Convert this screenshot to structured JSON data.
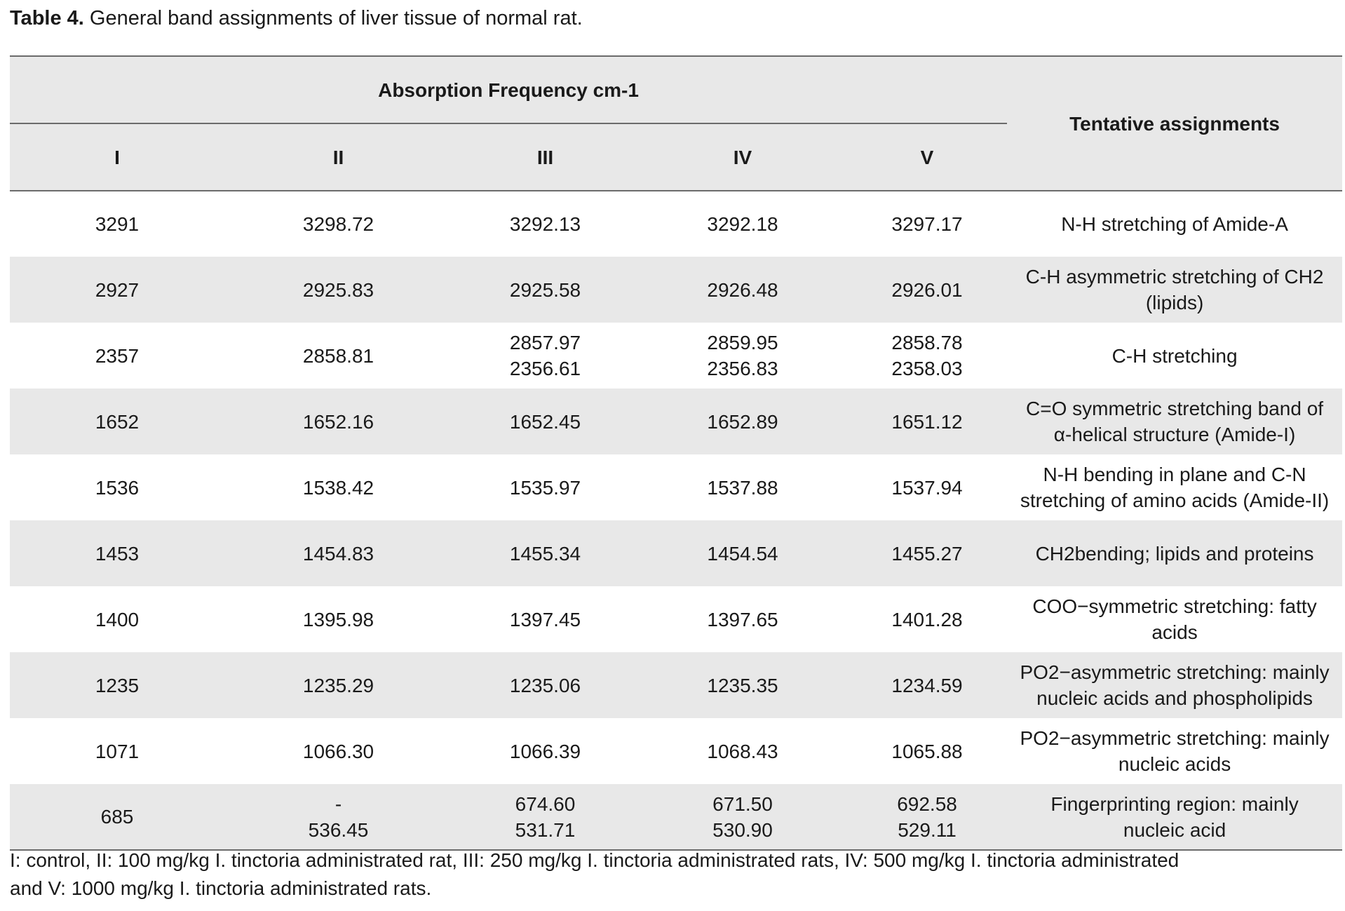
{
  "caption": {
    "label": "Table 4.",
    "text": "General band assignments of liver tissue of normal rat."
  },
  "header": {
    "group": "Absorption Frequency cm-1",
    "assignment": "Tentative assignments",
    "columns": [
      "I",
      "II",
      "III",
      "IV",
      "V"
    ]
  },
  "rows": [
    {
      "I": [
        "3291"
      ],
      "II": [
        "3298.72"
      ],
      "III": [
        "3292.13"
      ],
      "IV": [
        "3292.18"
      ],
      "V": [
        "3297.17"
      ],
      "assignment": [
        "N-H stretching of Amide-A"
      ]
    },
    {
      "I": [
        "2927"
      ],
      "II": [
        "2925.83"
      ],
      "III": [
        "2925.58"
      ],
      "IV": [
        "2926.48"
      ],
      "V": [
        "2926.01"
      ],
      "assignment": [
        "C-H asymmetric stretching of CH2",
        "(lipids)"
      ]
    },
    {
      "I": [
        "2357"
      ],
      "II": [
        "2858.81"
      ],
      "III": [
        "2857.97",
        "2356.61"
      ],
      "IV": [
        "2859.95",
        "2356.83"
      ],
      "V": [
        "2858.78",
        "2358.03"
      ],
      "assignment": [
        "C-H stretching"
      ]
    },
    {
      "I": [
        "1652"
      ],
      "II": [
        "1652.16"
      ],
      "III": [
        "1652.45"
      ],
      "IV": [
        "1652.89"
      ],
      "V": [
        "1651.12"
      ],
      "assignment": [
        "C=O symmetric stretching band of",
        "α-helical structure (Amide-I)"
      ]
    },
    {
      "I": [
        "1536"
      ],
      "II": [
        "1538.42"
      ],
      "III": [
        "1535.97"
      ],
      "IV": [
        "1537.88"
      ],
      "V": [
        "1537.94"
      ],
      "assignment": [
        "N-H bending in plane and C-N",
        "stretching of amino acids (Amide-II)"
      ]
    },
    {
      "I": [
        "1453"
      ],
      "II": [
        "1454.83"
      ],
      "III": [
        "1455.34"
      ],
      "IV": [
        "1454.54"
      ],
      "V": [
        "1455.27"
      ],
      "assignment": [
        "CH2bending; lipids and proteins"
      ]
    },
    {
      "I": [
        "1400"
      ],
      "II": [
        "1395.98"
      ],
      "III": [
        "1397.45"
      ],
      "IV": [
        "1397.65"
      ],
      "V": [
        "1401.28"
      ],
      "assignment": [
        "COO−symmetric stretching: fatty",
        "acids"
      ]
    },
    {
      "I": [
        "1235"
      ],
      "II": [
        "1235.29"
      ],
      "III": [
        "1235.06"
      ],
      "IV": [
        "1235.35"
      ],
      "V": [
        "1234.59"
      ],
      "assignment": [
        "PO2−asymmetric stretching: mainly",
        "nucleic acids and phospholipids"
      ]
    },
    {
      "I": [
        "1071"
      ],
      "II": [
        "1066.30"
      ],
      "III": [
        "1066.39"
      ],
      "IV": [
        "1068.43"
      ],
      "V": [
        "1065.88"
      ],
      "assignment": [
        "PO2−asymmetric stretching: mainly",
        "nucleic acids"
      ]
    },
    {
      "I": [
        "685"
      ],
      "II": [
        "-",
        "536.45"
      ],
      "III": [
        "674.60",
        "531.71"
      ],
      "IV": [
        "671.50",
        "530.90"
      ],
      "V": [
        "692.58",
        "529.11"
      ],
      "assignment": [
        "Fingerprinting region: mainly",
        "nucleic acid"
      ]
    }
  ],
  "footnote": {
    "line1": "I: control, II:  100 mg/kg  I. tinctoria administrated rat,  III:  250 mg/kg  I. tinctoria administrated rats, IV: 500 mg/kg  I. tinctoria administrated",
    "line2": "and V: 1000 mg/kg  I. tinctoria administrated rats."
  }
}
